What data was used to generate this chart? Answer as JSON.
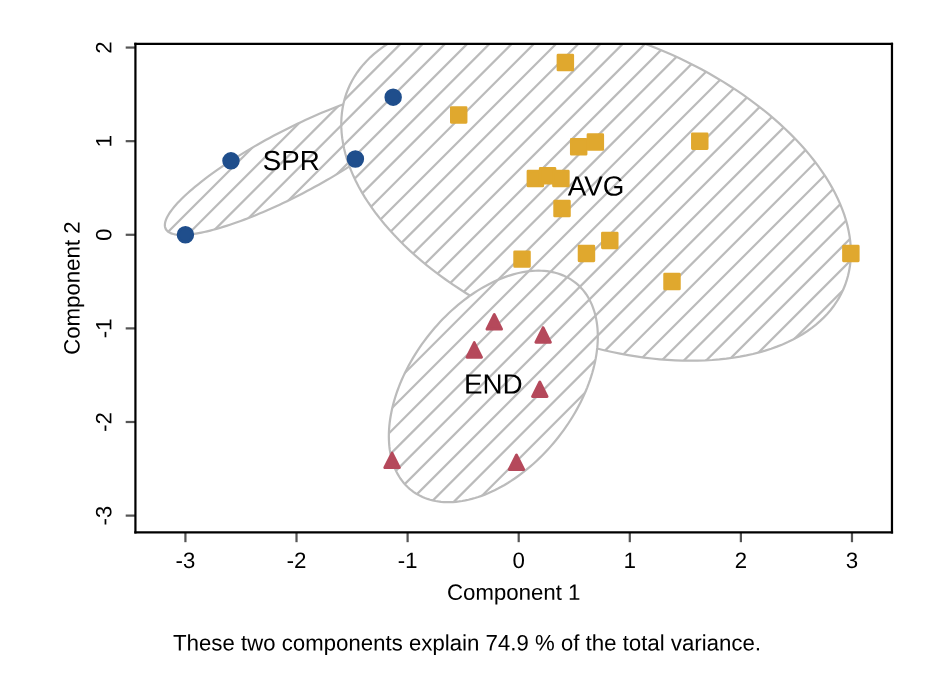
{
  "chart_data": {
    "type": "scatter",
    "xlabel": "Component 1",
    "ylabel": "Component 2",
    "annotations": [
      "These two components explain 74.9 % of the total variance."
    ],
    "xlim": [
      -3.45,
      3.36
    ],
    "ylim": [
      -3.18,
      2.04
    ],
    "xticks": [
      -3,
      -2,
      -1,
      0,
      1,
      2,
      3
    ],
    "yticks": [
      -3,
      -2,
      -1,
      0,
      1,
      2
    ],
    "grid": false,
    "legend": false,
    "series": [
      {
        "name": "SPR",
        "color": "#1f4e8c",
        "marker": "circle",
        "x": [
          -3.0,
          -2.59,
          -1.47,
          -1.13
        ],
        "values": [
          0.0,
          0.79,
          0.81,
          1.47
        ]
      },
      {
        "name": "AVG",
        "color": "#e0a82e",
        "marker": "square",
        "x": [
          -0.54,
          0.42,
          0.54,
          0.69,
          1.63,
          0.15,
          0.26,
          0.38,
          0.39,
          0.03,
          0.61,
          0.82,
          1.38,
          2.99
        ],
        "values": [
          1.28,
          1.84,
          0.94,
          0.99,
          1.0,
          0.6,
          0.63,
          0.6,
          0.28,
          -0.26,
          -0.2,
          -0.06,
          -0.5,
          -0.2
        ]
      },
      {
        "name": "END",
        "color": "#b5495b",
        "marker": "triangle",
        "x": [
          -0.22,
          -0.4,
          0.22,
          0.19,
          -1.14,
          -0.02
        ],
        "values": [
          -0.93,
          -1.23,
          -1.07,
          -1.65,
          -2.41,
          -2.43
        ]
      }
    ]
  }
}
